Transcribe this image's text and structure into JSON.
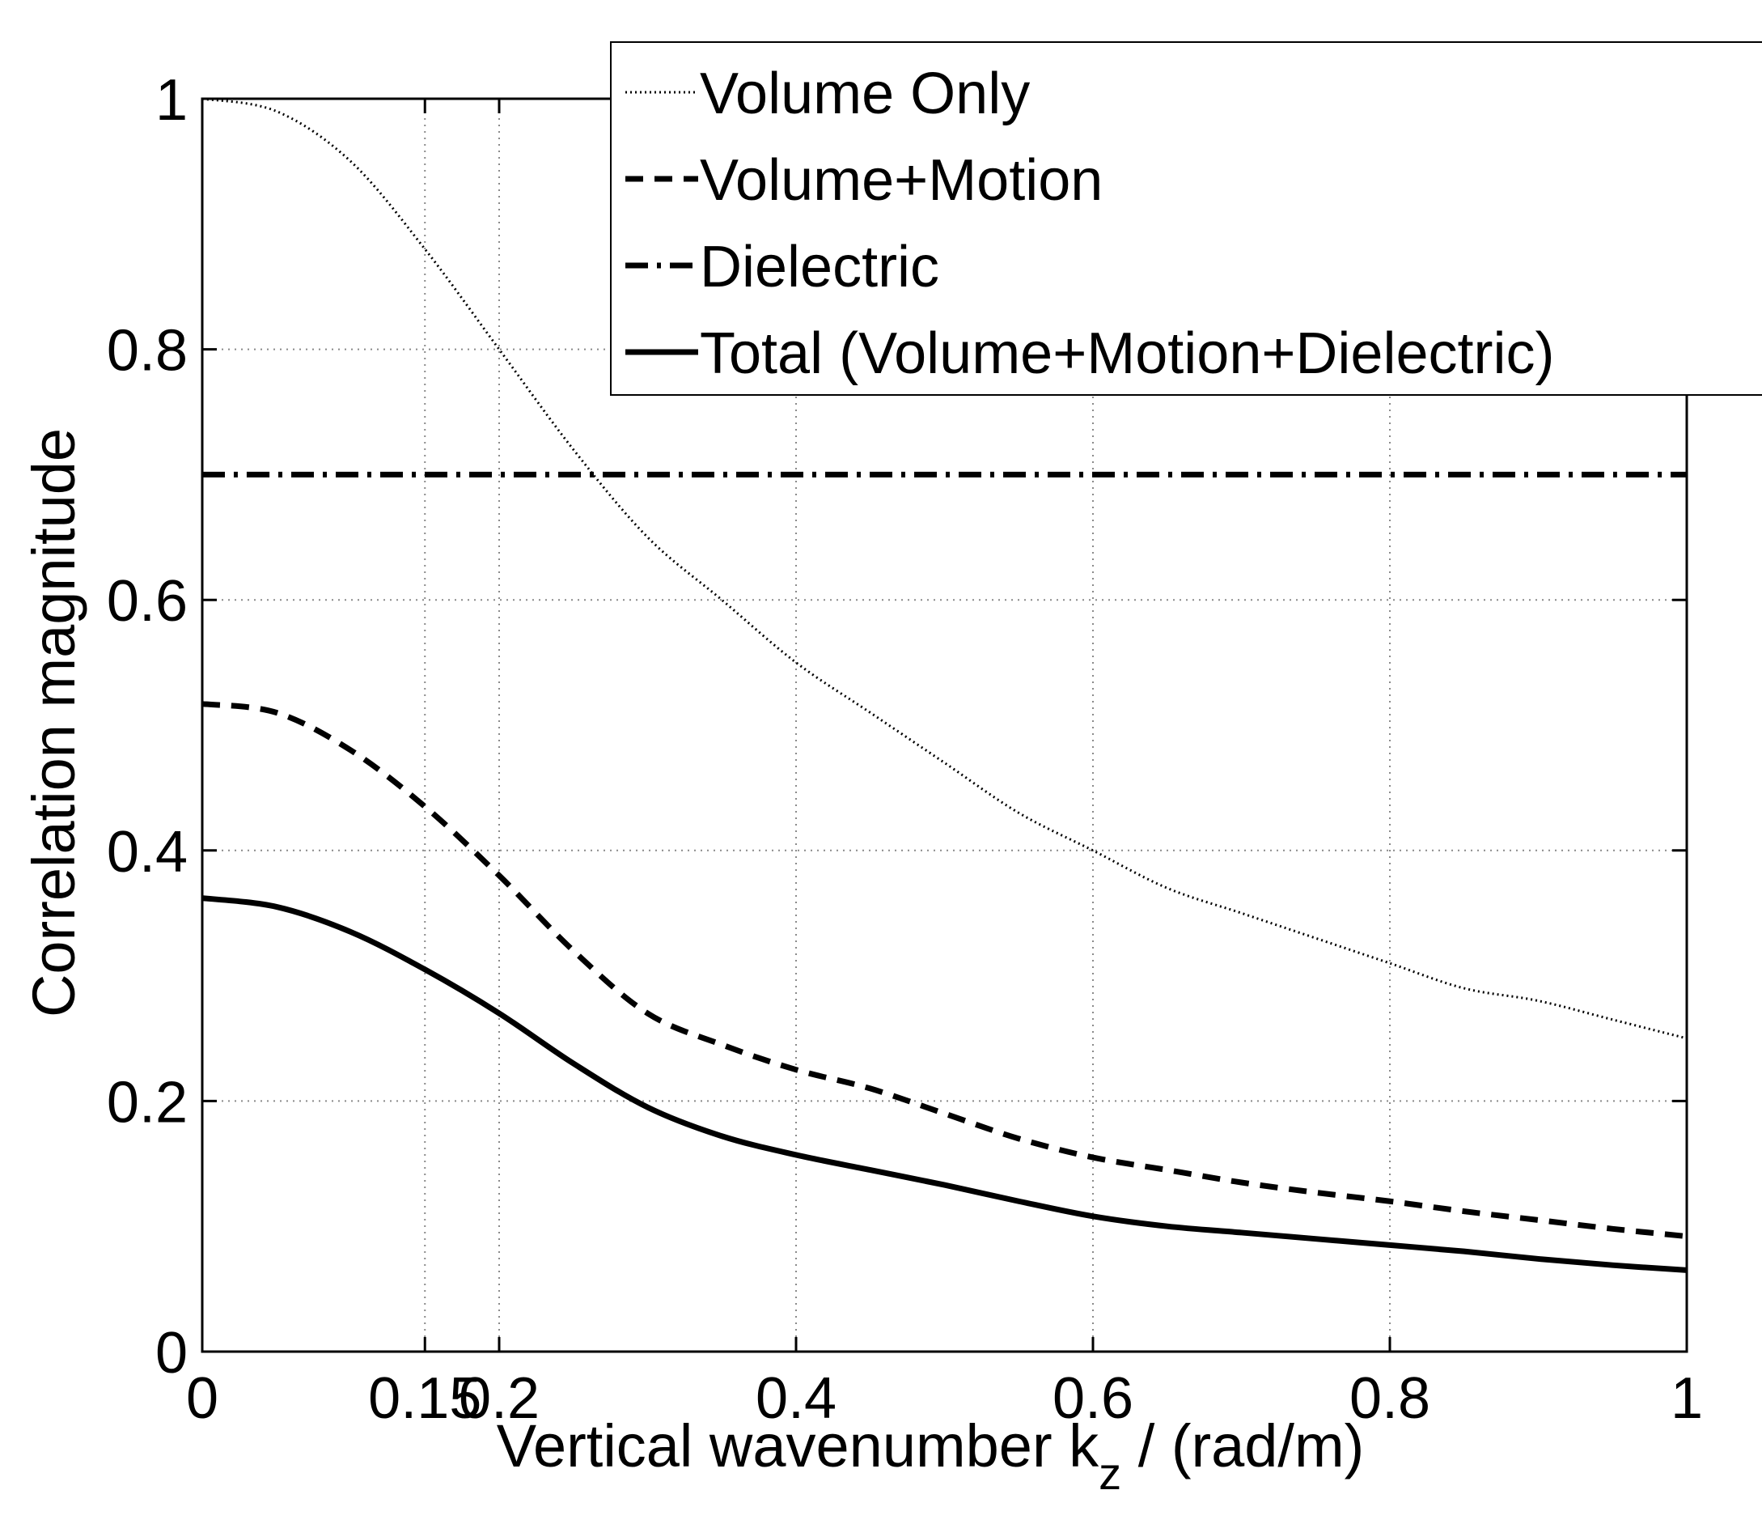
{
  "chart_data": {
    "type": "line",
    "title": "",
    "xlabel": "Vertical wavenumber k",
    "xlabel_sub": "z",
    "xlabel_suffix": " / (rad/m)",
    "ylabel": "Correlation magnitude",
    "xlim": [
      0,
      1
    ],
    "ylim": [
      0,
      1
    ],
    "xticks": [
      0,
      0.15,
      0.2,
      0.4,
      0.6,
      0.8,
      1
    ],
    "xtick_labels": [
      "0",
      "0.15",
      "0.2",
      "0.4",
      "0.6",
      "0.8",
      "1"
    ],
    "yticks": [
      0,
      0.2,
      0.4,
      0.6,
      0.8,
      1
    ],
    "ytick_labels": [
      "0",
      "0.2",
      "0.4",
      "0.6",
      "0.8",
      "1"
    ],
    "grid": true,
    "legend_position": "top-right",
    "x": [
      0,
      0.05,
      0.1,
      0.15,
      0.2,
      0.25,
      0.3,
      0.35,
      0.4,
      0.45,
      0.5,
      0.55,
      0.6,
      0.65,
      0.7,
      0.75,
      0.8,
      0.85,
      0.9,
      0.95,
      1.0
    ],
    "series": [
      {
        "name": "Volume Only",
        "style": "dotted",
        "values": [
          1.0,
          0.99,
          0.95,
          0.88,
          0.8,
          0.72,
          0.65,
          0.6,
          0.55,
          0.51,
          0.47,
          0.43,
          0.4,
          0.37,
          0.35,
          0.33,
          0.31,
          0.29,
          0.28,
          0.265,
          0.25
        ]
      },
      {
        "name": "Volume+Motion",
        "style": "dashed",
        "values": [
          0.517,
          0.51,
          0.48,
          0.435,
          0.38,
          0.32,
          0.27,
          0.245,
          0.225,
          0.21,
          0.19,
          0.17,
          0.155,
          0.145,
          0.135,
          0.127,
          0.12,
          0.112,
          0.105,
          0.098,
          0.092
        ]
      },
      {
        "name": "Dielectric",
        "style": "dash-dot",
        "values": [
          0.7,
          0.7,
          0.7,
          0.7,
          0.7,
          0.7,
          0.7,
          0.7,
          0.7,
          0.7,
          0.7,
          0.7,
          0.7,
          0.7,
          0.7,
          0.7,
          0.7,
          0.7,
          0.7,
          0.7,
          0.7
        ]
      },
      {
        "name": "Total (Volume+Motion+Dielectric)",
        "style": "solid",
        "values": [
          0.362,
          0.355,
          0.335,
          0.305,
          0.27,
          0.23,
          0.195,
          0.172,
          0.157,
          0.145,
          0.133,
          0.12,
          0.108,
          0.1,
          0.095,
          0.09,
          0.085,
          0.08,
          0.074,
          0.069,
          0.065
        ]
      }
    ]
  }
}
